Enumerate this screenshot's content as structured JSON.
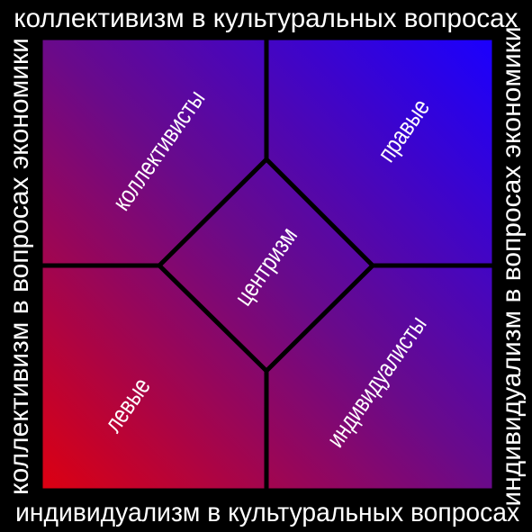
{
  "axes": {
    "top": "коллективизм в культуральных вопросах",
    "bottom": "индивидуализм в культуральных вопросах",
    "left": "коллективизм в вопросах экономики",
    "right": "индивидуализм в вопросах экономики"
  },
  "regions": {
    "top_left": "коллективисты",
    "top_right": "правые",
    "bottom_left": "левые",
    "bottom_right": "индивидуалисты",
    "center": "центризм"
  },
  "colors": {
    "background": "#000000",
    "red": "#dd0010",
    "blue": "#1a00ff",
    "purple": "#6a0a8a",
    "lines": "#000000",
    "text": "#ffffff"
  }
}
